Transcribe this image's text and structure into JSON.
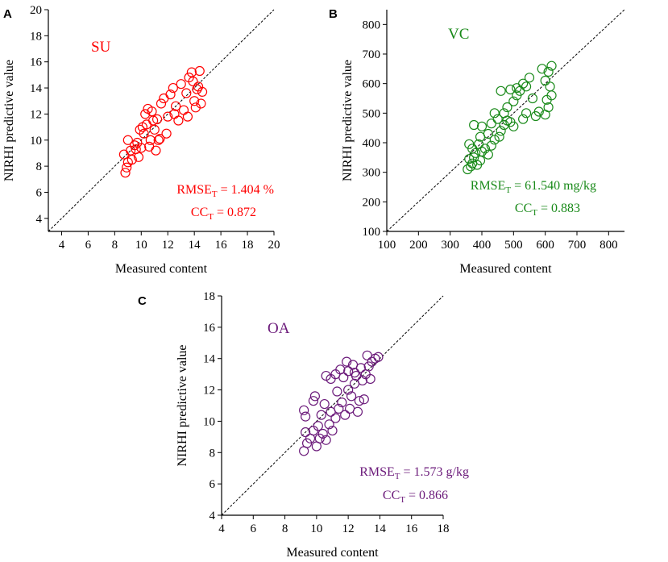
{
  "chart_data": [
    {
      "panel": "A",
      "type": "scatter",
      "title": "SU",
      "color": "#ff0000",
      "xlabel": "Measured content",
      "ylabel": "NIRHI predictive value",
      "xlim": [
        3,
        20
      ],
      "ylim": [
        3,
        20
      ],
      "xticks": [
        4,
        6,
        8,
        10,
        12,
        14,
        16,
        18,
        20
      ],
      "yticks": [
        4,
        6,
        8,
        10,
        12,
        14,
        16,
        18,
        20
      ],
      "stats": {
        "rmse_label": "RMSE",
        "rmse_sub": "T",
        "rmse_value": " = 1.404 %",
        "cc_label": "CC",
        "cc_sub": "T",
        "cc_value": " = 0.872"
      },
      "points": [
        [
          8.8,
          7.5
        ],
        [
          8.9,
          7.9
        ],
        [
          9.0,
          8.3
        ],
        [
          8.7,
          8.9
        ],
        [
          9.2,
          9.2
        ],
        [
          9.3,
          8.5
        ],
        [
          9.5,
          9.6
        ],
        [
          9.0,
          10.0
        ],
        [
          9.6,
          9.3
        ],
        [
          9.8,
          8.7
        ],
        [
          10.0,
          9.4
        ],
        [
          10.2,
          10.5
        ],
        [
          10.1,
          11.0
        ],
        [
          9.9,
          10.8
        ],
        [
          10.4,
          11.2
        ],
        [
          10.6,
          9.5
        ],
        [
          10.7,
          10.0
        ],
        [
          10.3,
          12.0
        ],
        [
          10.5,
          12.4
        ],
        [
          10.8,
          12.2
        ],
        [
          11.0,
          10.8
        ],
        [
          11.2,
          11.6
        ],
        [
          11.1,
          9.2
        ],
        [
          11.4,
          10.1
        ],
        [
          11.5,
          12.8
        ],
        [
          11.7,
          13.2
        ],
        [
          11.9,
          10.5
        ],
        [
          12.0,
          11.8
        ],
        [
          12.2,
          13.5
        ],
        [
          12.4,
          14.0
        ],
        [
          12.6,
          12.6
        ],
        [
          12.8,
          11.5
        ],
        [
          13.0,
          14.3
        ],
        [
          13.2,
          12.3
        ],
        [
          13.4,
          13.6
        ],
        [
          13.6,
          14.8
        ],
        [
          13.8,
          15.2
        ],
        [
          14.0,
          13.0
        ],
        [
          14.1,
          12.5
        ],
        [
          14.3,
          14.1
        ],
        [
          14.4,
          15.3
        ],
        [
          14.5,
          12.8
        ],
        [
          14.2,
          13.9
        ],
        [
          13.5,
          11.8
        ],
        [
          11.3,
          10.0
        ],
        [
          9.7,
          9.8
        ],
        [
          10.9,
          11.5
        ],
        [
          12.5,
          12.0
        ],
        [
          13.9,
          14.5
        ],
        [
          14.6,
          13.7
        ]
      ]
    },
    {
      "panel": "B",
      "type": "scatter",
      "title": "VC",
      "color": "#1a8a1a",
      "xlabel": "Measured content",
      "ylabel": "NIRHI predictive value",
      "xlim": [
        100,
        850
      ],
      "ylim": [
        100,
        850
      ],
      "xticks": [
        100,
        200,
        300,
        400,
        500,
        600,
        700,
        800
      ],
      "yticks": [
        100,
        200,
        300,
        400,
        500,
        600,
        700,
        800
      ],
      "stats": {
        "rmse_label": "RMSE",
        "rmse_sub": "T",
        "rmse_value": " = 61.540 mg/kg",
        "cc_label": "CC",
        "cc_sub": "T",
        "cc_value": " = 0.883"
      },
      "points": [
        [
          355,
          310
        ],
        [
          365,
          320
        ],
        [
          370,
          330
        ],
        [
          360,
          345
        ],
        [
          375,
          350
        ],
        [
          385,
          325
        ],
        [
          395,
          340
        ],
        [
          380,
          365
        ],
        [
          400,
          370
        ],
        [
          410,
          380
        ],
        [
          420,
          360
        ],
        [
          370,
          380
        ],
        [
          390,
          395
        ],
        [
          430,
          390
        ],
        [
          440,
          410
        ],
        [
          455,
          420
        ],
        [
          460,
          440
        ],
        [
          470,
          460
        ],
        [
          480,
          475
        ],
        [
          490,
          470
        ],
        [
          500,
          455
        ],
        [
          450,
          480
        ],
        [
          470,
          500
        ],
        [
          480,
          520
        ],
        [
          500,
          540
        ],
        [
          510,
          560
        ],
        [
          520,
          575
        ],
        [
          540,
          590
        ],
        [
          560,
          550
        ],
        [
          580,
          505
        ],
        [
          600,
          495
        ],
        [
          610,
          520
        ],
        [
          620,
          560
        ],
        [
          615,
          590
        ],
        [
          600,
          610
        ],
        [
          610,
          640
        ],
        [
          620,
          660
        ],
        [
          590,
          650
        ],
        [
          550,
          620
        ],
        [
          530,
          600
        ],
        [
          510,
          585
        ],
        [
          490,
          580
        ],
        [
          460,
          575
        ],
        [
          440,
          500
        ],
        [
          430,
          465
        ],
        [
          400,
          455
        ],
        [
          420,
          430
        ],
        [
          530,
          480
        ],
        [
          570,
          490
        ],
        [
          605,
          545
        ],
        [
          375,
          460
        ],
        [
          395,
          420
        ],
        [
          360,
          395
        ],
        [
          540,
          500
        ]
      ]
    },
    {
      "panel": "C",
      "type": "scatter",
      "title": "OA",
      "color": "#6b1a7a",
      "xlabel": "Measured content",
      "ylabel": "NIRHI predictive value",
      "xlim": [
        4,
        18
      ],
      "ylim": [
        4,
        18
      ],
      "xticks": [
        4,
        6,
        8,
        10,
        12,
        14,
        16,
        18
      ],
      "yticks": [
        4,
        6,
        8,
        10,
        12,
        14,
        16,
        18
      ],
      "stats": {
        "rmse_label": "RMSE",
        "rmse_sub": "T",
        "rmse_value": " = 1.573 g/kg",
        "cc_label": "CC",
        "cc_sub": "T",
        "cc_value": " = 0.866"
      },
      "points": [
        [
          9.2,
          8.1
        ],
        [
          9.4,
          8.6
        ],
        [
          9.3,
          9.3
        ],
        [
          9.6,
          8.9
        ],
        [
          9.8,
          9.4
        ],
        [
          10.0,
          8.4
        ],
        [
          10.2,
          8.9
        ],
        [
          10.1,
          9.7
        ],
        [
          10.4,
          9.2
        ],
        [
          10.6,
          8.8
        ],
        [
          10.8,
          9.8
        ],
        [
          11.0,
          9.4
        ],
        [
          11.2,
          10.2
        ],
        [
          10.9,
          10.6
        ],
        [
          11.4,
          10.8
        ],
        [
          11.6,
          11.2
        ],
        [
          11.8,
          10.4
        ],
        [
          12.0,
          12.0
        ],
        [
          12.2,
          11.6
        ],
        [
          12.4,
          12.4
        ],
        [
          12.5,
          12.9
        ],
        [
          12.7,
          11.3
        ],
        [
          12.9,
          12.6
        ],
        [
          13.1,
          13.0
        ],
        [
          13.3,
          13.5
        ],
        [
          13.5,
          13.8
        ],
        [
          13.7,
          14.0
        ],
        [
          13.9,
          14.1
        ],
        [
          13.2,
          14.2
        ],
        [
          12.8,
          13.4
        ],
        [
          12.3,
          13.6
        ],
        [
          12.0,
          13.2
        ],
        [
          11.7,
          12.8
        ],
        [
          11.5,
          13.3
        ],
        [
          11.2,
          13.0
        ],
        [
          10.9,
          12.7
        ],
        [
          10.6,
          12.9
        ],
        [
          9.8,
          11.3
        ],
        [
          9.9,
          11.6
        ],
        [
          9.3,
          10.3
        ],
        [
          9.2,
          10.7
        ],
        [
          10.3,
          10.4
        ],
        [
          10.5,
          11.1
        ],
        [
          12.6,
          10.6
        ],
        [
          13.0,
          11.4
        ],
        [
          12.1,
          10.8
        ],
        [
          11.9,
          13.8
        ],
        [
          12.4,
          13.1
        ],
        [
          13.4,
          12.7
        ],
        [
          11.3,
          11.9
        ]
      ]
    }
  ]
}
